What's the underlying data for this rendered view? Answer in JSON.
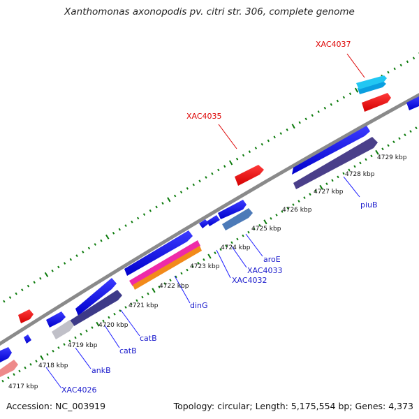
{
  "title": "Xanthomonas axonopodis pv. citri str. 306, complete genome",
  "accession": "Accession: NC_003919",
  "topology": "Topology: circular; Length: 5,175,554 bp; Genes: 4,373",
  "kbp_labels": [
    "4717 kbp",
    "4718 kbp",
    "4719 kbp",
    "4720 kbp",
    "4721 kbp",
    "4722 kbp",
    "4723 kbp",
    "4724 kbp",
    "4725 kbp",
    "4726 kbp",
    "4727 kbp",
    "4728 kbp",
    "4729 kbp"
  ],
  "gene_labels_top": [
    "XAC4035",
    "XAC4037"
  ],
  "gene_labels_bottom": [
    "XAC4026",
    "ankB",
    "catB",
    "catB",
    "dinG",
    "XAC4032",
    "XAC4033",
    "aroE",
    "piuB"
  ],
  "colors": {
    "forward_cds": "#ff0000",
    "reverse_cds": "#0000ff",
    "backbone": "#888888",
    "tick": "#0b7a0b",
    "label_top": "#dd0000",
    "label_bottom": "#0000cc"
  }
}
